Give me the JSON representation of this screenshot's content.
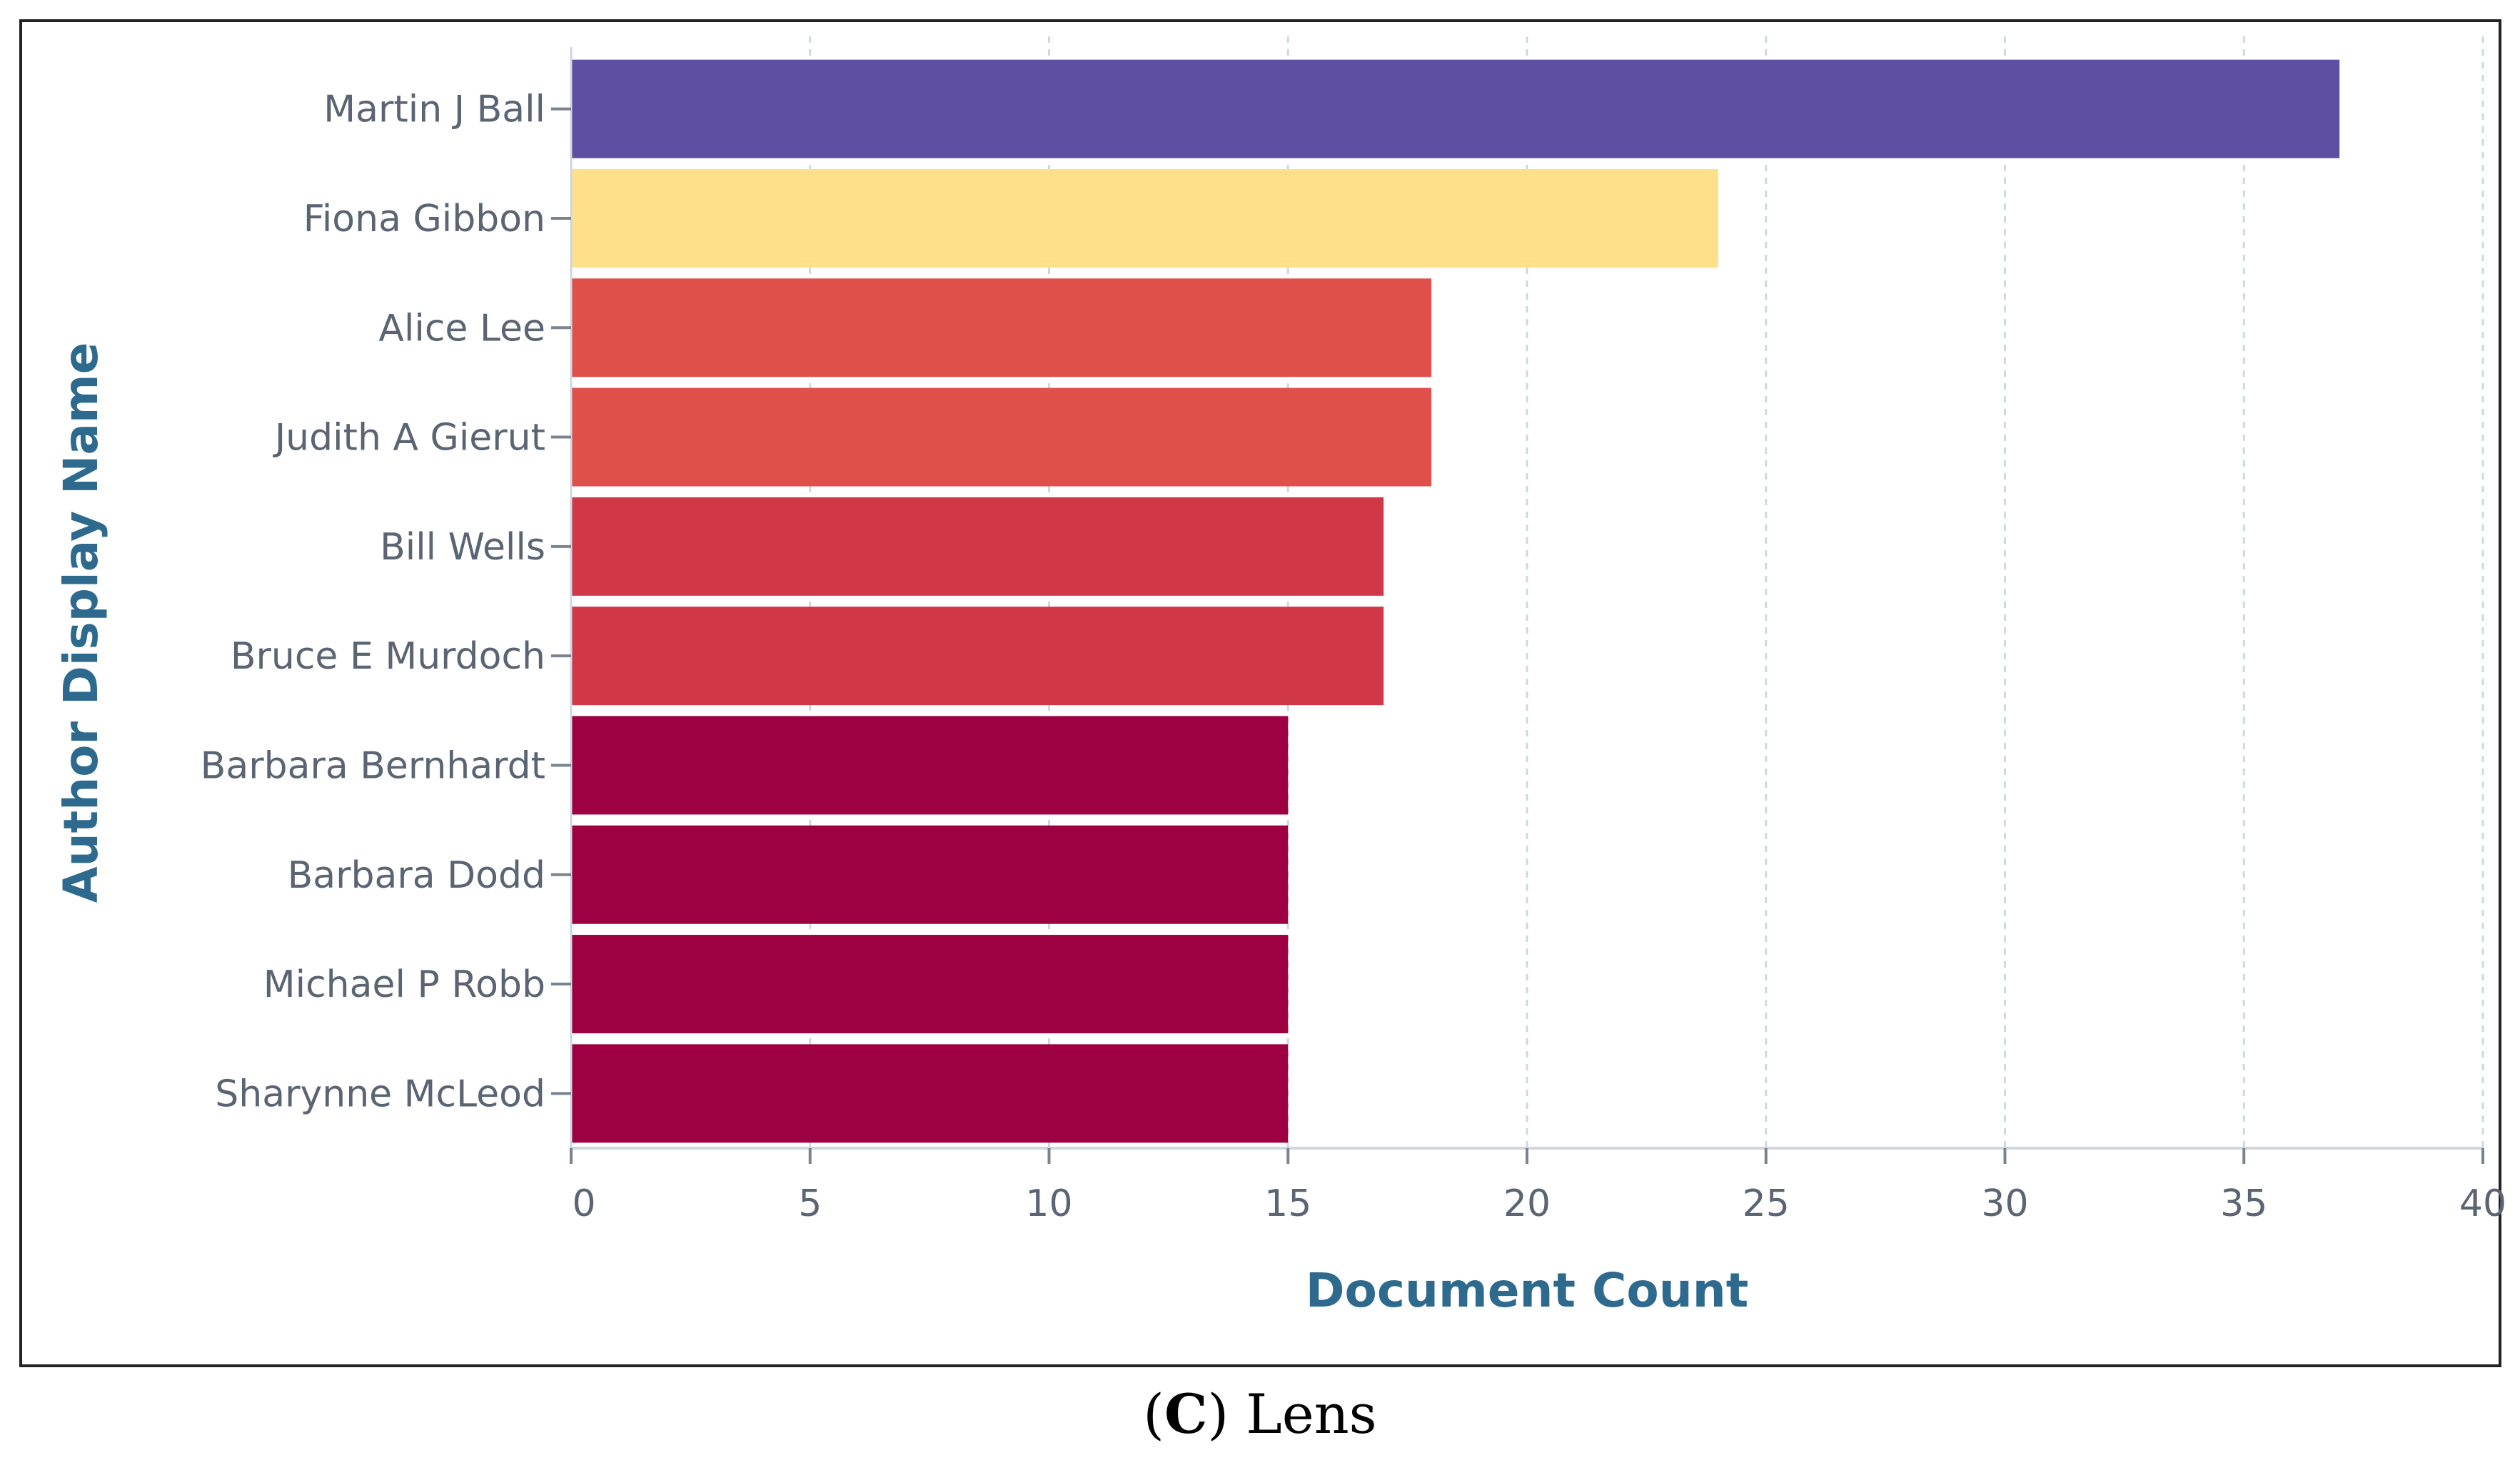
{
  "caption": {
    "open": "(",
    "letter": "C",
    "close": ")",
    "text": "Lens"
  },
  "chart_data": {
    "type": "bar",
    "orientation": "horizontal",
    "categories": [
      "Martin J Ball",
      "Fiona Gibbon",
      "Alice Lee",
      "Judith A Gierut",
      "Bill Wells",
      "Bruce E Murdoch",
      "Barbara Bernhardt",
      "Barbara Dodd",
      "Michael P Robb",
      "Sharynne McLeod"
    ],
    "values": [
      37,
      24,
      18,
      18,
      17,
      17,
      15,
      15,
      15,
      15
    ],
    "colors": [
      "#5e4fa2",
      "#fee08b",
      "#e0504a",
      "#e0504a",
      "#d03848",
      "#d03848",
      "#9e0142",
      "#9e0142",
      "#9e0142",
      "#9e0142"
    ],
    "xlabel": "Document Count",
    "ylabel": "Author Display Name",
    "xlim": [
      0,
      40
    ],
    "xticks": [
      0,
      5,
      10,
      15,
      20,
      25,
      30,
      35,
      40
    ],
    "grid": "vertical dashed"
  }
}
